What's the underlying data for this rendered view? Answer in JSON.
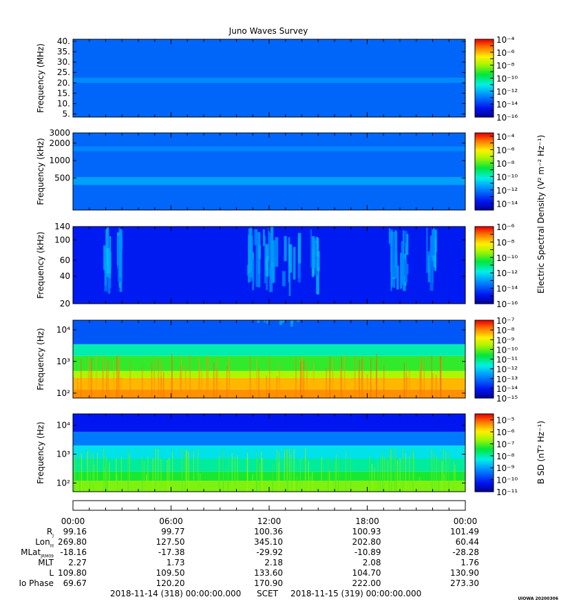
{
  "chart_data": {
    "type": "heatmap",
    "title": "Juno Waves Survey",
    "time_axis": {
      "range": [
        "2018-11-14 00:00",
        "2018-11-15 00:00"
      ],
      "tick_labels": [
        "00:00",
        "06:00",
        "12:00",
        "18:00",
        "00:00"
      ]
    },
    "panels": [
      {
        "ylabel": "Frequency (MHz)",
        "yscale": "linear",
        "ylim": [
          3.5,
          41
        ],
        "y_ticks": [
          5,
          10,
          15,
          20,
          25,
          30,
          35,
          40
        ],
        "y_tick_labels": [
          "5.",
          "10.",
          "15.",
          "20.",
          "25.",
          "30.",
          "35.",
          "40."
        ],
        "colorbar": {
          "min_exp": -16,
          "max_exp": -4,
          "tick_exps": [
            -4,
            -6,
            -8,
            -10,
            -12,
            -14,
            -16
          ]
        },
        "bands": [
          {
            "y_low": 20,
            "y_high": 22.5,
            "level_exp": -12.6
          }
        ],
        "background_exp": -13.2
      },
      {
        "ylabel": "Frequency (kHz)",
        "yscale": "log",
        "ylim": [
          140,
          3000
        ],
        "y_ticks": [
          500,
          1000,
          2000,
          3000
        ],
        "y_tick_labels": [
          "500",
          "1000",
          "2000",
          "3000"
        ],
        "colorbar": {
          "min_exp": -15,
          "max_exp": -3.5,
          "tick_exps": [
            -4,
            -6,
            -8,
            -10,
            -12,
            -14
          ]
        },
        "bands": [
          {
            "y_low": 380,
            "y_high": 520,
            "level_exp": -11.4
          },
          {
            "y_low": 1450,
            "y_high": 1750,
            "level_exp": -11.8
          }
        ],
        "background_exp": -12.3
      },
      {
        "ylabel": "Frequency (kHz)",
        "yscale": "log",
        "ylim": [
          20,
          140
        ],
        "y_ticks": [
          20,
          40,
          60,
          100,
          140
        ],
        "y_tick_labels": [
          "20",
          "40",
          "60",
          "100",
          "140"
        ],
        "colorbar": {
          "min_exp": -16,
          "max_exp": -6,
          "tick_exps": [
            -6,
            -8,
            -10,
            -12,
            -14,
            -16
          ]
        },
        "activity_hours": [
          [
            1.8,
            2.3
          ],
          [
            2.6,
            3.0
          ],
          [
            10.6,
            11.0
          ],
          [
            11.0,
            12.0
          ],
          [
            12.0,
            13.8
          ],
          [
            14.5,
            15.0
          ],
          [
            19.3,
            19.8
          ],
          [
            20.0,
            20.4
          ],
          [
            21.6,
            22.1
          ]
        ],
        "background_exp": -14.7
      },
      {
        "ylabel": "Frequency (Hz)",
        "yscale": "log",
        "ylim": [
          70,
          20000
        ],
        "y_ticks": [
          100,
          1000,
          10000
        ],
        "y_tick_labels": [
          "10²",
          "10³",
          "10⁴"
        ],
        "colorbar": {
          "min_exp": -15,
          "max_exp": -7,
          "tick_exps": [
            -7,
            -8,
            -9,
            -10,
            -11,
            -12,
            -13,
            -14,
            -15
          ]
        },
        "layers": [
          {
            "y_low": 70,
            "y_high": 130,
            "level_exp": -8.0
          },
          {
            "y_low": 130,
            "y_high": 300,
            "level_exp": -8.3
          },
          {
            "y_low": 300,
            "y_high": 500,
            "level_exp": -9.5
          },
          {
            "y_low": 500,
            "y_high": 1500,
            "level_exp": -10.3
          },
          {
            "y_low": 1500,
            "y_high": 3500,
            "level_exp": -11.3
          },
          {
            "y_low": 3500,
            "y_high": 20000,
            "level_exp": -13.3
          }
        ]
      },
      {
        "ylabel": "Frequency (Hz)",
        "yscale": "log",
        "ylim": [
          50,
          25000
        ],
        "y_ticks": [
          100,
          1000,
          10000
        ],
        "y_tick_labels": [
          "10²",
          "10³",
          "10⁴"
        ],
        "colorbar": {
          "min_exp": -11,
          "max_exp": -4.5,
          "tick_exps": [
            -5,
            -6,
            -7,
            -8,
            -9,
            -10,
            -11
          ]
        },
        "layers": [
          {
            "y_low": 50,
            "y_high": 120,
            "level_exp": -6.8
          },
          {
            "y_low": 120,
            "y_high": 250,
            "level_exp": -7.3
          },
          {
            "y_low": 250,
            "y_high": 700,
            "level_exp": -7.9
          },
          {
            "y_low": 700,
            "y_high": 2000,
            "level_exp": -8.4
          },
          {
            "y_low": 2000,
            "y_high": 6000,
            "level_exp": -9.3
          },
          {
            "y_low": 6000,
            "y_high": 25000,
            "level_exp": -10.2
          }
        ]
      }
    ],
    "colorbar_labels": {
      "electric": "Electric Spectral Density (V² m⁻² Hz⁻¹)",
      "magnetic": "B SD (nT² Hz⁻¹)"
    },
    "ephemeris": {
      "row_labels": [
        "R",
        "Lon",
        "MLat",
        "MLT",
        "L",
        "Io Phase"
      ],
      "row_label_subscripts": [
        "J",
        "III",
        "JRM09",
        "",
        "",
        ""
      ],
      "rows": [
        [
          "99.16",
          "99.77",
          "100.36",
          "100.93",
          "101.49"
        ],
        [
          "269.80",
          "127.50",
          "345.10",
          "202.80",
          "60.44"
        ],
        [
          "-18.16",
          "-17.38",
          "-29.92",
          "-10.89",
          "-28.28"
        ],
        [
          "2.27",
          "1.73",
          "2.18",
          "2.08",
          "1.76"
        ],
        [
          "109.80",
          "109.50",
          "133.60",
          "104.70",
          "130.90"
        ],
        [
          "69.67",
          "120.20",
          "170.90",
          "222.00",
          "273.30"
        ]
      ]
    },
    "footer": {
      "start": "2018-11-14 (318) 00:00:00.000",
      "center": "SCET",
      "end": "2018-11-15 (319) 00:00:00.000",
      "stamp": "UIOWA 20200306"
    }
  }
}
